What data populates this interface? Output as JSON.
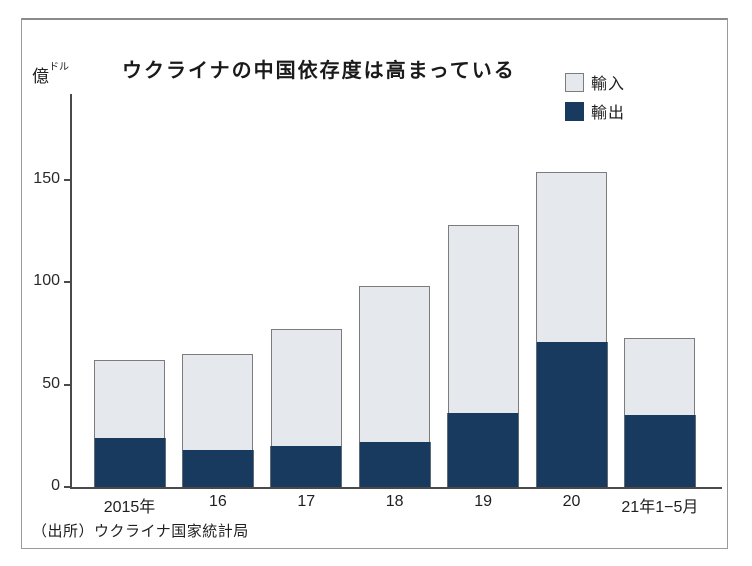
{
  "title": "ウクライナの中国依存度は高まっている",
  "unit_label": {
    "main": "億",
    "sub": "ドル"
  },
  "legend": [
    {
      "id": "import",
      "label": "輸入",
      "color": "#e5e8ec"
    },
    {
      "id": "export",
      "label": "輸出",
      "color": "#173a5e"
    }
  ],
  "source": "（出所）ウクライナ国家統計局",
  "colors": {
    "export_navy": "#173a5e",
    "import_gray": "#e5e8ec",
    "bar_border": "#7c7c7c",
    "axis": "#4a4a4a"
  },
  "chart_data": {
    "type": "bar",
    "stacked": true,
    "title": "ウクライナの中国依存度は高まっている",
    "ylabel": "億ドル",
    "xlabel": "",
    "categories": [
      "2015年",
      "16",
      "17",
      "18",
      "19",
      "20",
      "21年1−5月"
    ],
    "series": [
      {
        "name": "輸出",
        "color": "#173a5e",
        "values": [
          24,
          18,
          20,
          22,
          36,
          71,
          35
        ]
      },
      {
        "name": "輸入",
        "color": "#e5e8ec",
        "values": [
          38,
          47,
          57,
          76,
          92,
          83,
          38
        ]
      }
    ],
    "totals": [
      62,
      65,
      77,
      98,
      128,
      154,
      73
    ],
    "yticks": [
      0,
      50,
      100,
      150
    ],
    "ylim": [
      0,
      192
    ],
    "grid": false,
    "legend_position": "top-right"
  }
}
